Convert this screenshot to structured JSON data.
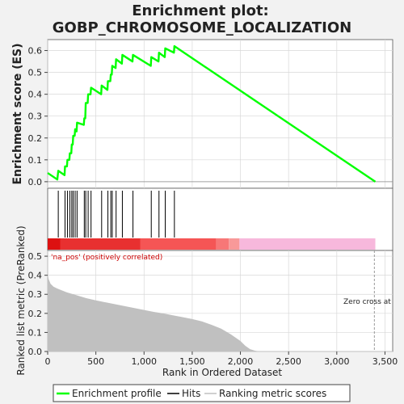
{
  "chart_data": {
    "type": "line",
    "title": "Enrichment plot:",
    "subtitle": "GOBP_CHROMOSOME_LOCALIZATION",
    "ylabel": "Enrichment score (ES)",
    "ylabel_metric": "Ranked list metric (PreRanked)",
    "xlabel": "Rank in Ordered Dataset",
    "x_ticks": [
      0,
      500,
      1000,
      1500,
      2000,
      2500,
      3000,
      3500
    ],
    "x_tick_labels": [
      "0",
      "500",
      "1,000",
      "1,500",
      "2,000",
      "2,500",
      "3,000",
      "3,500"
    ],
    "es_yticks": [
      0.0,
      0.1,
      0.2,
      0.3,
      0.4,
      0.5,
      0.6
    ],
    "es_ytick_labels": [
      "0.0",
      "0.1",
      "0.2",
      "0.3",
      "0.4",
      "0.5",
      "0.6"
    ],
    "metric_yticks": [
      0.0,
      0.1,
      0.2,
      0.3,
      0.4,
      0.5
    ],
    "metric_ytick_labels": [
      "0.0",
      "0.1",
      "0.2",
      "0.3",
      "0.4",
      "0.5"
    ],
    "xlim": [
      0,
      3580
    ],
    "es_ylim": [
      -0.03,
      0.65
    ],
    "metric_ylim": [
      0,
      0.53
    ],
    "n_genes": 3400,
    "enrichment_profile": {
      "name": "Enrichment profile",
      "color": "#00ff00",
      "points": [
        [
          0,
          0.04
        ],
        [
          100,
          0.01
        ],
        [
          110,
          0.05
        ],
        [
          175,
          0.03
        ],
        [
          180,
          0.07
        ],
        [
          200,
          0.07
        ],
        [
          205,
          0.1
        ],
        [
          225,
          0.1
        ],
        [
          230,
          0.13
        ],
        [
          245,
          0.13
        ],
        [
          250,
          0.17
        ],
        [
          260,
          0.17
        ],
        [
          265,
          0.21
        ],
        [
          280,
          0.21
        ],
        [
          285,
          0.24
        ],
        [
          300,
          0.23
        ],
        [
          305,
          0.27
        ],
        [
          375,
          0.26
        ],
        [
          380,
          0.29
        ],
        [
          390,
          0.29
        ],
        [
          395,
          0.36
        ],
        [
          415,
          0.36
        ],
        [
          420,
          0.4
        ],
        [
          445,
          0.4
        ],
        [
          450,
          0.43
        ],
        [
          555,
          0.4
        ],
        [
          560,
          0.44
        ],
        [
          620,
          0.42
        ],
        [
          625,
          0.46
        ],
        [
          650,
          0.46
        ],
        [
          655,
          0.49
        ],
        [
          665,
          0.49
        ],
        [
          670,
          0.53
        ],
        [
          705,
          0.52
        ],
        [
          710,
          0.56
        ],
        [
          770,
          0.54
        ],
        [
          775,
          0.58
        ],
        [
          880,
          0.55
        ],
        [
          885,
          0.58
        ],
        [
          1070,
          0.53
        ],
        [
          1075,
          0.57
        ],
        [
          1150,
          0.55
        ],
        [
          1155,
          0.59
        ],
        [
          1215,
          0.57
        ],
        [
          1220,
          0.61
        ],
        [
          1310,
          0.59
        ],
        [
          1315,
          0.62
        ],
        [
          3400,
          0.0
        ]
      ]
    },
    "hits": {
      "name": "Hits",
      "positions": [
        110,
        180,
        205,
        230,
        250,
        265,
        285,
        305,
        380,
        395,
        420,
        450,
        560,
        625,
        655,
        670,
        710,
        775,
        885,
        1075,
        1155,
        1220,
        1315
      ]
    },
    "ranking_metric": {
      "name": "Ranking metric scores",
      "color": "#c0c0c0",
      "points": [
        [
          0,
          0.41
        ],
        [
          10,
          0.38
        ],
        [
          30,
          0.355
        ],
        [
          60,
          0.34
        ],
        [
          100,
          0.33
        ],
        [
          200,
          0.31
        ],
        [
          300,
          0.295
        ],
        [
          400,
          0.28
        ],
        [
          500,
          0.268
        ],
        [
          600,
          0.258
        ],
        [
          700,
          0.248
        ],
        [
          800,
          0.238
        ],
        [
          900,
          0.228
        ],
        [
          1000,
          0.218
        ],
        [
          1100,
          0.208
        ],
        [
          1200,
          0.2
        ],
        [
          1300,
          0.19
        ],
        [
          1400,
          0.18
        ],
        [
          1500,
          0.17
        ],
        [
          1600,
          0.158
        ],
        [
          1700,
          0.14
        ],
        [
          1800,
          0.12
        ],
        [
          1900,
          0.09
        ],
        [
          2000,
          0.055
        ],
        [
          2050,
          0.03
        ],
        [
          2100,
          0.012
        ],
        [
          2150,
          0.004
        ],
        [
          2200,
          0.0
        ],
        [
          3400,
          0.0
        ]
      ]
    },
    "zero_cross": {
      "label": "Zero cross at",
      "x": 3390
    },
    "annotation": "'na_pos' (positively correlated)",
    "color_bar": [
      {
        "from": 0,
        "to": 130,
        "color": "#dd1111"
      },
      {
        "from": 130,
        "to": 960,
        "color": "#e83030"
      },
      {
        "from": 960,
        "to": 1750,
        "color": "#f55555"
      },
      {
        "from": 1750,
        "to": 1880,
        "color": "#f77777"
      },
      {
        "from": 1880,
        "to": 1990,
        "color": "#f89999"
      },
      {
        "from": 1990,
        "to": 3400,
        "color": "#f7b8dc"
      }
    ],
    "grid": true,
    "legend_position": "bottom"
  },
  "legend": {
    "profile_label": "Enrichment profile",
    "hits_label": "Hits",
    "metric_label": "Ranking metric scores"
  }
}
